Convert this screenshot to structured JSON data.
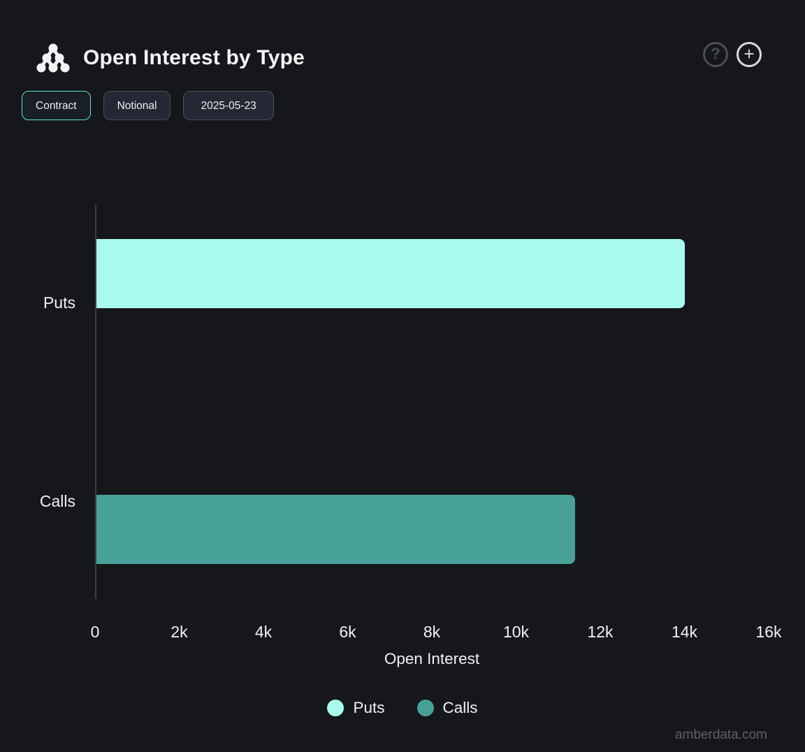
{
  "header": {
    "title": "Open Interest by Type",
    "help_icon": "?",
    "add_icon": "+"
  },
  "toolbar": {
    "buttons": [
      {
        "label": "Contract",
        "active": true
      },
      {
        "label": "Notional",
        "active": false
      },
      {
        "label": "2025-05-23",
        "active": false
      }
    ]
  },
  "chart_data": {
    "type": "bar",
    "orientation": "horizontal",
    "title": "Open Interest by Type",
    "categories": [
      "Puts",
      "Calls"
    ],
    "series": [
      {
        "name": "Puts",
        "value": 14000,
        "color": "#A8FAEC"
      },
      {
        "name": "Calls",
        "value": 11400,
        "color": "#48A199"
      }
    ],
    "xlabel": "Open Interest",
    "xlim": [
      0,
      16000
    ],
    "xticks": [
      0,
      2000,
      4000,
      6000,
      8000,
      10000,
      12000,
      14000,
      16000
    ],
    "xtick_labels": [
      "0",
      "2k",
      "4k",
      "6k",
      "8k",
      "10k",
      "12k",
      "14k",
      "16k"
    ],
    "grid": false,
    "legend_position": "bottom",
    "legend": [
      {
        "label": "Puts",
        "color": "#A8FAEC"
      },
      {
        "label": "Calls",
        "color": "#48A199"
      }
    ]
  },
  "footer": {
    "watermark": "amberdata.com"
  },
  "colors": {
    "background": "#16171B",
    "accent": "#5EE6D3",
    "puts": "#A8FAEC",
    "calls": "#48A199",
    "axis_line": "#3B3E43",
    "text": "#F2F3F5",
    "muted_text": "#5D6165"
  }
}
